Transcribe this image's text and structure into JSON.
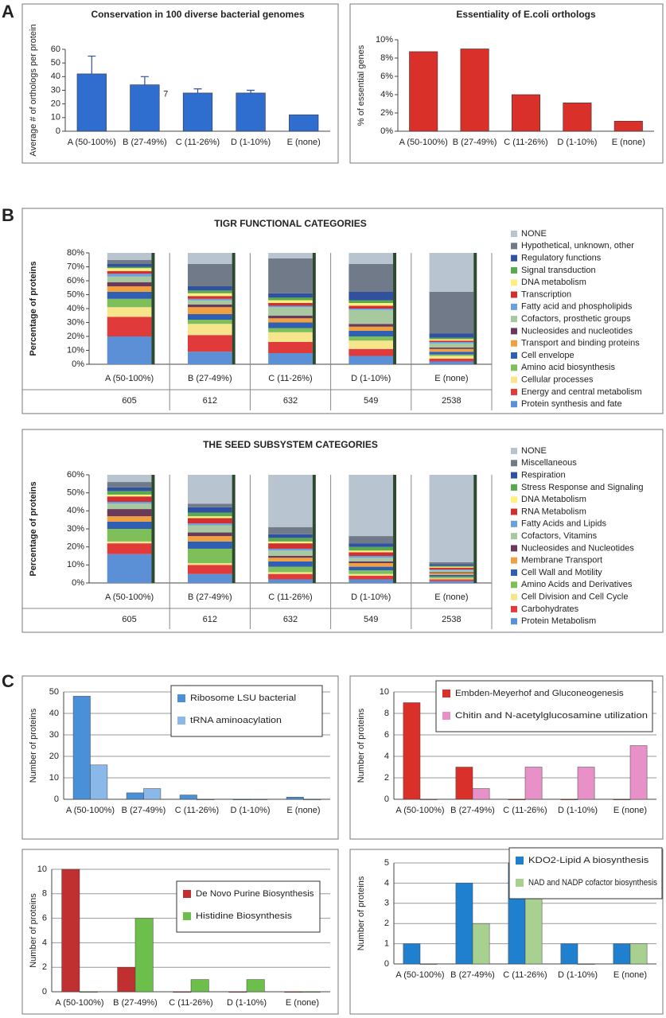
{
  "panel_labels": [
    "A",
    "B",
    "C"
  ],
  "chart_data": [
    {
      "type": "bar",
      "title": "Conservation in  100 diverse bacterial genomes",
      "ylabel": "Average # of orthologs per protein",
      "categories": [
        "A (50-100%)",
        "B (27-49%)",
        "C (11-26%)",
        "D (1-10%)",
        "E (none)"
      ],
      "values": [
        42,
        34,
        28,
        28,
        12
      ],
      "errors": [
        13,
        6,
        3,
        2,
        null
      ],
      "color": "#2f6ecf",
      "annotation": "7",
      "ylim": [
        0,
        60
      ],
      "yticks": [
        0,
        10,
        20,
        30,
        40,
        50,
        60
      ],
      "grid": false
    },
    {
      "type": "bar",
      "title": "Essentiality of E.coli orthologs",
      "ylabel": "% of essential genes",
      "categories": [
        "A (50-100%)",
        "B (27-49%)",
        "C (11-26%)",
        "D (1-10%)",
        "E (none)"
      ],
      "values": [
        8.7,
        9.0,
        4.0,
        3.1,
        1.1
      ],
      "color": "#d9302a",
      "ylim": [
        0,
        10
      ],
      "yticks": [
        {
          "value": 0,
          "label": "0%"
        },
        {
          "value": 2,
          "label": "2%"
        },
        {
          "value": 4,
          "label": "4%"
        },
        {
          "value": 6,
          "label": "6%"
        },
        {
          "value": 8,
          "label": "8%"
        },
        {
          "value": 10,
          "label": "10%"
        }
      ],
      "grid": false
    },
    {
      "type": "stacked",
      "title": "TIGR FUNCTIONAL CATEGORIES",
      "ylabel": "Percentage of proteins",
      "categories": [
        "A (50-100%)",
        "B (27-49%)",
        "C (11-26%)",
        "D (1-10%)",
        "E (none)"
      ],
      "counts": [
        605,
        612,
        632,
        549,
        2538
      ],
      "legend": "right",
      "grid": false,
      "ylim": [
        0,
        80
      ],
      "yticks": [
        {
          "value": 0,
          "label": "0%"
        },
        {
          "value": 10,
          "label": "10%"
        },
        {
          "value": 20,
          "label": "20%"
        },
        {
          "value": 30,
          "label": "30%"
        },
        {
          "value": 40,
          "label": "40%"
        },
        {
          "value": 50,
          "label": "50%"
        },
        {
          "value": 60,
          "label": "60%"
        },
        {
          "value": 70,
          "label": "70%"
        },
        {
          "value": 80,
          "label": "80%"
        }
      ],
      "series": [
        {
          "name": "Protein synthesis and fate",
          "color": "#5b8fd6",
          "values": [
            20,
            9,
            8,
            6,
            2
          ]
        },
        {
          "name": "Energy and central metabolism",
          "color": "#e03a3a",
          "values": [
            14,
            12,
            8,
            5,
            2
          ]
        },
        {
          "name": "Cellular processes",
          "color": "#f7e58c",
          "values": [
            7,
            8,
            7,
            6,
            2
          ]
        },
        {
          "name": "Amino acid biosynthesis",
          "color": "#7fbf5a",
          "values": [
            6,
            3,
            3,
            3,
            1
          ]
        },
        {
          "name": "Cell envelope",
          "color": "#2f5fb3",
          "values": [
            5,
            4,
            4,
            4,
            2
          ]
        },
        {
          "name": "Transport and binding proteins",
          "color": "#f0a040",
          "values": [
            4,
            5,
            3,
            3,
            2
          ]
        },
        {
          "name": "Nucleosides and nucleotides",
          "color": "#6b3a5a",
          "values": [
            3,
            2,
            2,
            2,
            1
          ]
        },
        {
          "name": "Cofactors, prosthetic groups",
          "color": "#a8c8a0",
          "values": [
            4,
            3,
            6,
            10,
            3
          ]
        },
        {
          "name": "Fatty acid and phospholipids",
          "color": "#6aa0e0",
          "values": [
            2,
            1,
            1,
            1,
            1
          ]
        },
        {
          "name": "Transcription",
          "color": "#d03030",
          "values": [
            2,
            2,
            2,
            2,
            1
          ]
        },
        {
          "name": "DNA metabolism",
          "color": "#fff080",
          "values": [
            2,
            2,
            2,
            2,
            1
          ]
        },
        {
          "name": "Signal transduction",
          "color": "#5aa850",
          "values": [
            1,
            2,
            2,
            2,
            1
          ]
        },
        {
          "name": "Regulatory functions",
          "color": "#3050a0",
          "values": [
            2,
            3,
            3,
            6,
            3
          ]
        },
        {
          "name": "Hypothetical, unknown, other",
          "color": "#707a88",
          "values": [
            3,
            16,
            25,
            20,
            30
          ]
        },
        {
          "name": "NONE",
          "color": "#b8c4d0",
          "values": [
            5,
            8,
            4,
            8,
            28
          ]
        }
      ]
    },
    {
      "type": "stacked",
      "title": "THE SEED SUBSYSTEM CATEGORIES",
      "ylabel": "Percentage of proteins",
      "categories": [
        "A (50-100%)",
        "B (27-49%)",
        "C (11-26%)",
        "D (1-10%)",
        "E (none)"
      ],
      "counts": [
        605,
        612,
        632,
        549,
        2538
      ],
      "legend": "right",
      "grid": false,
      "ylim": [
        0,
        60
      ],
      "yticks": [
        {
          "value": 0,
          "label": "0%"
        },
        {
          "value": 10,
          "label": "10%"
        },
        {
          "value": 20,
          "label": "20%"
        },
        {
          "value": 30,
          "label": "30%"
        },
        {
          "value": 40,
          "label": "40%"
        },
        {
          "value": 50,
          "label": "50%"
        },
        {
          "value": 60,
          "label": "60%"
        }
      ],
      "series": [
        {
          "name": "Protein Metabolism",
          "color": "#5b8fd6",
          "values": [
            16,
            5,
            2,
            2,
            1
          ]
        },
        {
          "name": "Carbohydrates",
          "color": "#e03a3a",
          "values": [
            6,
            5,
            3,
            2,
            1
          ]
        },
        {
          "name": "Cell Division and Cell Cycle",
          "color": "#f7e58c",
          "values": [
            1,
            1,
            1,
            1,
            0.5
          ]
        },
        {
          "name": "Amino Acids and Derivatives",
          "color": "#7fbf5a",
          "values": [
            7,
            8,
            3,
            2,
            1
          ]
        },
        {
          "name": "Cell Wall and Motility",
          "color": "#2f5fb3",
          "values": [
            4,
            4,
            3,
            2,
            1
          ]
        },
        {
          "name": "Membrane Transport",
          "color": "#f0a040",
          "values": [
            3,
            3,
            2,
            2,
            1
          ]
        },
        {
          "name": "Nucleosides and Nucleotides",
          "color": "#6b3a5a",
          "values": [
            4,
            2,
            1,
            1,
            0.5
          ]
        },
        {
          "name": "Cofactors, Vitamins",
          "color": "#a8c8a0",
          "values": [
            3,
            4,
            3,
            2,
            1
          ]
        },
        {
          "name": "Fatty Acids and Lipids",
          "color": "#6aa0e0",
          "values": [
            1,
            1,
            1,
            1,
            0.5
          ]
        },
        {
          "name": "RNA Metabolism",
          "color": "#d03030",
          "values": [
            3,
            3,
            3,
            2,
            1
          ]
        },
        {
          "name": "DNA Metabolism",
          "color": "#fff080",
          "values": [
            1,
            1,
            1,
            1,
            0.5
          ]
        },
        {
          "name": "Stress Response and Signaling",
          "color": "#5aa850",
          "values": [
            2,
            2,
            2,
            2,
            0.5
          ]
        },
        {
          "name": "Respiration",
          "color": "#3050a0",
          "values": [
            2,
            3,
            2,
            2,
            1
          ]
        },
        {
          "name": "Miscellaneous",
          "color": "#707a88",
          "values": [
            3,
            2,
            4,
            4,
            1
          ]
        },
        {
          "name": "NONE",
          "color": "#b8c4d0",
          "values": [
            4,
            16,
            29,
            34,
            48.5
          ]
        }
      ]
    },
    {
      "type": "grouped",
      "ylabel": "Number of proteins",
      "categories": [
        "A (50-100%)",
        "B (27-49%)",
        "C (11-26%)",
        "D (1-10%)",
        "E (none)"
      ],
      "ylim": [
        0,
        50
      ],
      "yticks": [
        0,
        10,
        20,
        30,
        40,
        50
      ],
      "grid": true,
      "legend": "upper right",
      "series": [
        {
          "name": "Ribosome LSU bacterial",
          "color": "#4a90d9",
          "values": [
            48,
            3,
            2,
            0,
            1
          ]
        },
        {
          "name": "tRNA aminoacylation",
          "color": "#8ab8e8",
          "values": [
            16,
            5,
            0,
            0,
            0
          ]
        }
      ]
    },
    {
      "type": "grouped",
      "ylabel": "Number of proteins",
      "categories": [
        "A (50-100%)",
        "B (27-49%)",
        "C (11-26%)",
        "D (1-10%)",
        "E (none)"
      ],
      "ylim": [
        0,
        10
      ],
      "yticks": [
        0,
        2,
        4,
        6,
        8,
        10
      ],
      "grid": true,
      "legend": "upper right",
      "series": [
        {
          "name": "Embden-Meyerhof and Gluconeogenesis",
          "color": "#d9302a",
          "values": [
            9,
            3,
            0,
            0,
            0
          ]
        },
        {
          "name": "Chitin and N-acetylglucosamine utilization",
          "color": "#e890c8",
          "values": [
            0,
            1,
            3,
            3,
            5
          ]
        }
      ]
    },
    {
      "type": "grouped",
      "ylabel": "Number of proteins",
      "categories": [
        "A (50-100%)",
        "B (27-49%)",
        "C (11-26%)",
        "D (1-10%)",
        "E (none)"
      ],
      "ylim": [
        0,
        10
      ],
      "yticks": [
        0,
        2,
        4,
        6,
        8,
        10
      ],
      "grid": true,
      "legend": "upper right",
      "series": [
        {
          "name": "De Novo Purine Biosynthesis",
          "color": "#c03030",
          "values": [
            10,
            2,
            0,
            0,
            0
          ]
        },
        {
          "name": "Histidine Biosynthesis",
          "color": "#6cbf4a",
          "values": [
            0,
            6,
            1,
            1,
            0
          ]
        }
      ]
    },
    {
      "type": "grouped",
      "ylabel": "Number of proteins",
      "categories": [
        "A (50-100%)",
        "B (27-49%)",
        "C (11-26%)",
        "D (1-10%)",
        "E (none)"
      ],
      "ylim": [
        0,
        5
      ],
      "yticks": [
        0,
        1,
        2,
        3,
        4,
        5
      ],
      "grid": true,
      "legend": "upper right",
      "series": [
        {
          "name": "KDO2-Lipid A biosynthesis",
          "color": "#2080d0",
          "values": [
            1,
            4,
            5,
            1,
            1
          ]
        },
        {
          "name": "NAD and NADP cofactor biosynthesis",
          "color": "#a8d090",
          "values": [
            0,
            2,
            4,
            0,
            1
          ]
        }
      ]
    }
  ]
}
